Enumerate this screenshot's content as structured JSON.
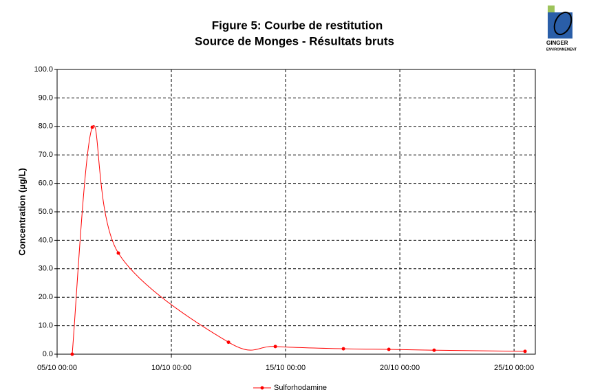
{
  "chart_data": {
    "type": "line",
    "title": "Figure 5: Courbe de restitution",
    "subtitle": "Source de Monges - Résultats bruts",
    "y_label": "Concentration (µg/L)",
    "logo": [
      "GINGER",
      "ENVIRONNEMENT"
    ],
    "x": [
      5.66,
      6.54,
      7.68,
      12.5,
      14.55,
      17.53,
      19.52,
      21.5,
      25.48
    ],
    "series": [
      {
        "name": "Sulforhodamine",
        "color": "#ff0000",
        "values": [
          0,
          79.7,
          35.5,
          4.2,
          2.7,
          1.9,
          1.7,
          1.4,
          1.0
        ]
      }
    ],
    "xlim": [
      5,
      25.93
    ],
    "xticks": [
      {
        "value": 5,
        "label": "05/10 00:00"
      },
      {
        "value": 10,
        "label": "10/10 00:00"
      },
      {
        "value": 15,
        "label": "15/10 00:00"
      },
      {
        "value": 20,
        "label": "20/10 00:00"
      },
      {
        "value": 25,
        "label": "25/10 00:00"
      }
    ],
    "ylim": [
      0,
      100
    ],
    "yticks": [
      {
        "value": 0,
        "label": "0.0"
      },
      {
        "value": 10,
        "label": "10.0"
      },
      {
        "value": 20,
        "label": "20.0"
      },
      {
        "value": 30,
        "label": "30.0"
      },
      {
        "value": 40,
        "label": "40.0"
      },
      {
        "value": 50,
        "label": "50.0"
      },
      {
        "value": 60,
        "label": "60.0"
      },
      {
        "value": 70,
        "label": "70.0"
      },
      {
        "value": 80,
        "label": "80.0"
      },
      {
        "value": 90,
        "label": "90.0"
      },
      {
        "value": 100,
        "label": "100.0"
      }
    ],
    "grid": true,
    "smooth": true,
    "legend": "bottom"
  }
}
